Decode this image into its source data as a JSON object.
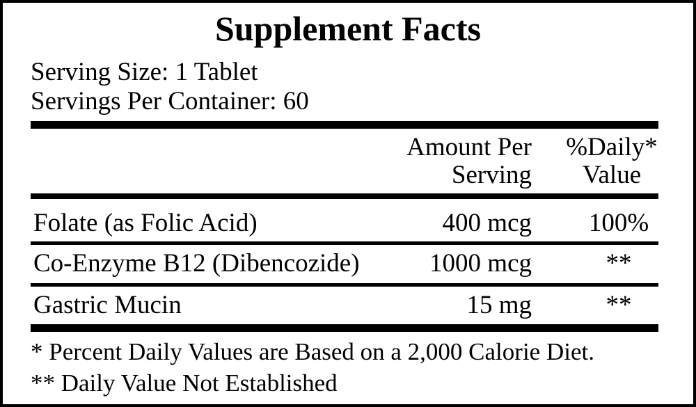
{
  "title": "Supplement Facts",
  "serving_size": "Serving Size: 1 Tablet",
  "servings_per_container": "Servings Per Container: 60",
  "headers": {
    "amount_1": "Amount Per",
    "amount_2": "Serving",
    "dv_1": "%Daily*",
    "dv_2": "Value"
  },
  "rows": [
    {
      "name": "Folate (as Folic Acid)",
      "amount": "400 mcg",
      "dv": "100%"
    },
    {
      "name": "Co-Enzyme B12 (Dibencozide)",
      "amount": "1000 mcg",
      "dv": "**"
    },
    {
      "name": "Gastric Mucin",
      "amount": "15 mg",
      "dv": "**"
    }
  ],
  "footnotes": [
    "* Percent Daily Values are Based on a 2,000 Calorie Diet.",
    "** Daily Value Not Established"
  ]
}
